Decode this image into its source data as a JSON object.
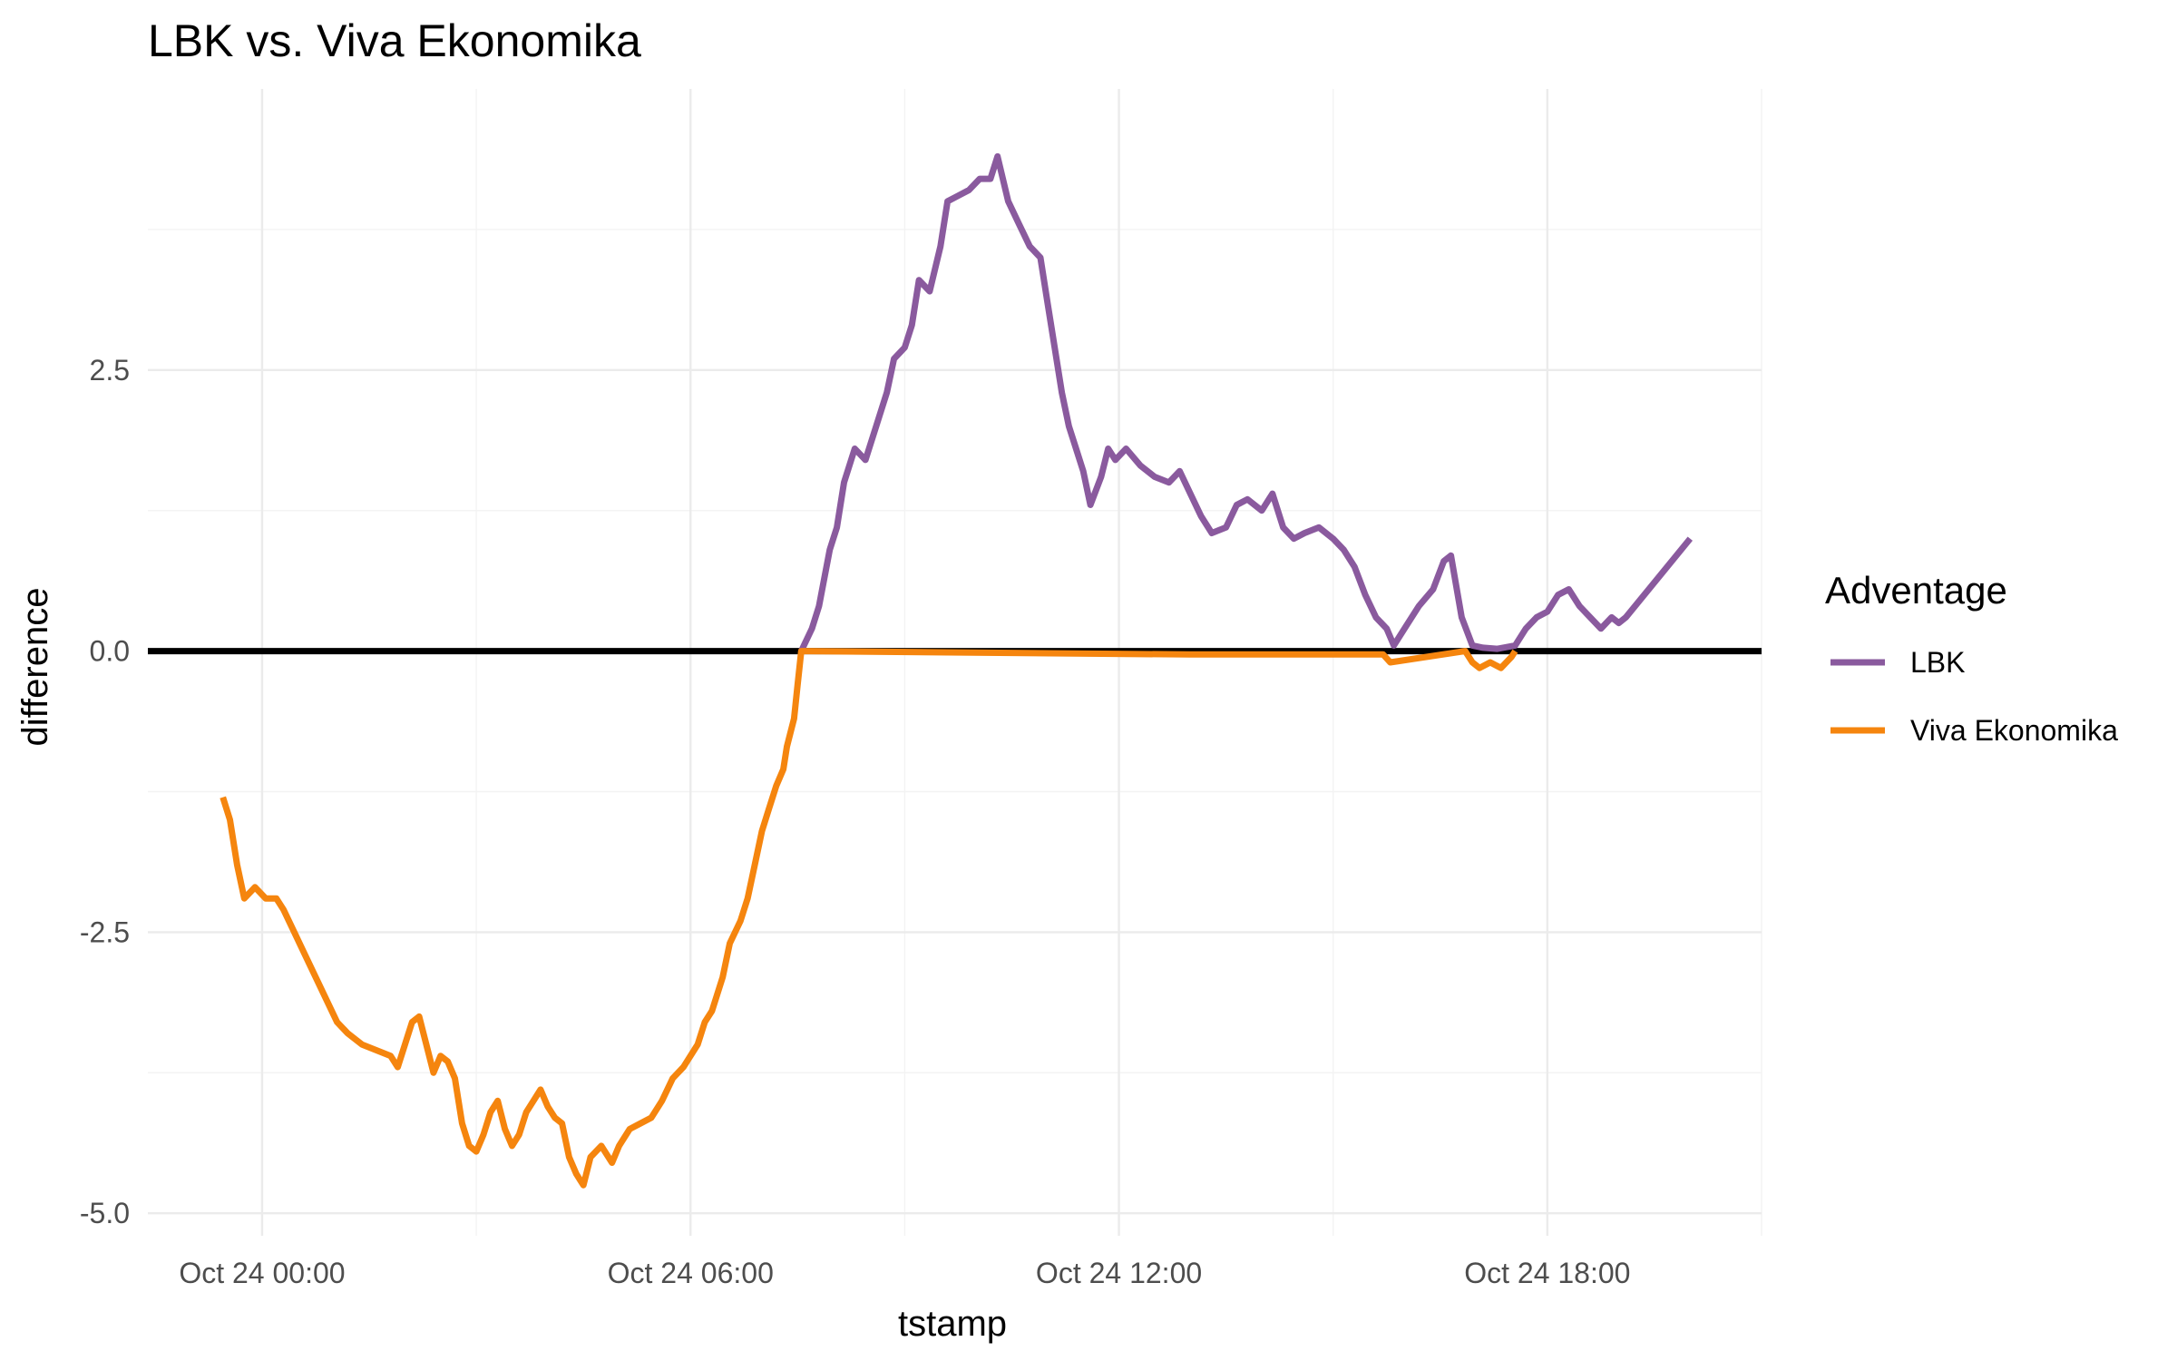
{
  "chart_data": {
    "type": "line",
    "title": "LBK vs. Viva Ekonomika",
    "xlabel": "tstamp",
    "ylabel": "difference",
    "x_ticks": [
      {
        "x": 0,
        "label": "Oct 24 00:00"
      },
      {
        "x": 6,
        "label": "Oct 24 06:00"
      },
      {
        "x": 12,
        "label": "Oct 24 12:00"
      },
      {
        "x": 18,
        "label": "Oct 24 18:00"
      }
    ],
    "y_ticks": [
      -5.0,
      -2.5,
      0.0,
      2.5
    ],
    "y_tick_labels": [
      "-5.0",
      "-2.5",
      "0.0",
      "2.5"
    ],
    "xlim": [
      -1.6,
      21.0
    ],
    "ylim": [
      -5.2,
      5.0
    ],
    "grid": true,
    "reference_line_y": 0,
    "legend": {
      "title": "Adventage",
      "position": "right",
      "entries": [
        "LBK",
        "Viva Ekonomika"
      ]
    },
    "series": [
      {
        "name": "LBK",
        "color": "#8a5a9e",
        "points": [
          [
            7.55,
            0.0
          ],
          [
            7.7,
            0.2
          ],
          [
            7.8,
            0.4
          ],
          [
            7.95,
            0.9
          ],
          [
            8.05,
            1.1
          ],
          [
            8.15,
            1.5
          ],
          [
            8.3,
            1.8
          ],
          [
            8.45,
            1.7
          ],
          [
            8.6,
            2.0
          ],
          [
            8.75,
            2.3
          ],
          [
            8.85,
            2.6
          ],
          [
            9.0,
            2.7
          ],
          [
            9.1,
            2.9
          ],
          [
            9.2,
            3.3
          ],
          [
            9.35,
            3.2
          ],
          [
            9.5,
            3.6
          ],
          [
            9.6,
            4.0
          ],
          [
            9.75,
            4.05
          ],
          [
            9.9,
            4.1
          ],
          [
            10.05,
            4.2
          ],
          [
            10.2,
            4.2
          ],
          [
            10.3,
            4.4
          ],
          [
            10.45,
            4.0
          ],
          [
            10.6,
            3.8
          ],
          [
            10.75,
            3.6
          ],
          [
            10.9,
            3.5
          ],
          [
            11.0,
            3.1
          ],
          [
            11.1,
            2.7
          ],
          [
            11.2,
            2.3
          ],
          [
            11.3,
            2.0
          ],
          [
            11.4,
            1.8
          ],
          [
            11.5,
            1.6
          ],
          [
            11.6,
            1.3
          ],
          [
            11.75,
            1.55
          ],
          [
            11.85,
            1.8
          ],
          [
            11.95,
            1.7
          ],
          [
            12.1,
            1.8
          ],
          [
            12.3,
            1.65
          ],
          [
            12.5,
            1.55
          ],
          [
            12.7,
            1.5
          ],
          [
            12.85,
            1.6
          ],
          [
            13.0,
            1.4
          ],
          [
            13.15,
            1.2
          ],
          [
            13.3,
            1.05
          ],
          [
            13.5,
            1.1
          ],
          [
            13.65,
            1.3
          ],
          [
            13.8,
            1.35
          ],
          [
            14.0,
            1.25
          ],
          [
            14.15,
            1.4
          ],
          [
            14.3,
            1.1
          ],
          [
            14.45,
            1.0
          ],
          [
            14.6,
            1.05
          ],
          [
            14.8,
            1.1
          ],
          [
            15.0,
            1.0
          ],
          [
            15.15,
            0.9
          ],
          [
            15.3,
            0.75
          ],
          [
            15.45,
            0.5
          ],
          [
            15.6,
            0.3
          ],
          [
            15.75,
            0.2
          ],
          [
            15.85,
            0.05
          ],
          [
            16.0,
            0.2
          ],
          [
            16.2,
            0.4
          ],
          [
            16.4,
            0.55
          ],
          [
            16.55,
            0.8
          ],
          [
            16.65,
            0.85
          ],
          [
            16.8,
            0.3
          ],
          [
            16.95,
            0.05
          ],
          [
            17.1,
            0.03
          ],
          [
            17.3,
            0.02
          ],
          [
            17.55,
            0.05
          ],
          [
            17.7,
            0.2
          ],
          [
            17.85,
            0.3
          ],
          [
            18.0,
            0.35
          ],
          [
            18.15,
            0.5
          ],
          [
            18.3,
            0.55
          ],
          [
            18.45,
            0.4
          ],
          [
            18.6,
            0.3
          ],
          [
            18.75,
            0.2
          ],
          [
            18.9,
            0.3
          ],
          [
            19.0,
            0.25
          ],
          [
            19.1,
            0.3
          ],
          [
            20.0,
            1.0
          ]
        ]
      },
      {
        "name": "Viva Ekonomika",
        "color": "#f5850e",
        "points": [
          [
            -0.55,
            -1.3
          ],
          [
            -0.45,
            -1.5
          ],
          [
            -0.35,
            -1.9
          ],
          [
            -0.25,
            -2.2
          ],
          [
            -0.1,
            -2.1
          ],
          [
            0.05,
            -2.2
          ],
          [
            0.2,
            -2.2
          ],
          [
            0.3,
            -2.3
          ],
          [
            0.45,
            -2.5
          ],
          [
            0.6,
            -2.7
          ],
          [
            0.75,
            -2.9
          ],
          [
            0.9,
            -3.1
          ],
          [
            1.05,
            -3.3
          ],
          [
            1.2,
            -3.4
          ],
          [
            1.4,
            -3.5
          ],
          [
            1.6,
            -3.55
          ],
          [
            1.8,
            -3.6
          ],
          [
            1.9,
            -3.7
          ],
          [
            2.0,
            -3.5
          ],
          [
            2.1,
            -3.3
          ],
          [
            2.2,
            -3.25
          ],
          [
            2.3,
            -3.5
          ],
          [
            2.4,
            -3.75
          ],
          [
            2.5,
            -3.6
          ],
          [
            2.6,
            -3.65
          ],
          [
            2.7,
            -3.8
          ],
          [
            2.8,
            -4.2
          ],
          [
            2.9,
            -4.4
          ],
          [
            3.0,
            -4.45
          ],
          [
            3.1,
            -4.3
          ],
          [
            3.2,
            -4.1
          ],
          [
            3.3,
            -4.0
          ],
          [
            3.4,
            -4.25
          ],
          [
            3.5,
            -4.4
          ],
          [
            3.6,
            -4.3
          ],
          [
            3.7,
            -4.1
          ],
          [
            3.8,
            -4.0
          ],
          [
            3.9,
            -3.9
          ],
          [
            4.0,
            -4.05
          ],
          [
            4.1,
            -4.15
          ],
          [
            4.2,
            -4.2
          ],
          [
            4.3,
            -4.5
          ],
          [
            4.4,
            -4.65
          ],
          [
            4.5,
            -4.75
          ],
          [
            4.6,
            -4.5
          ],
          [
            4.75,
            -4.4
          ],
          [
            4.9,
            -4.55
          ],
          [
            5.0,
            -4.4
          ],
          [
            5.15,
            -4.25
          ],
          [
            5.3,
            -4.2
          ],
          [
            5.45,
            -4.15
          ],
          [
            5.6,
            -4.0
          ],
          [
            5.75,
            -3.8
          ],
          [
            5.9,
            -3.7
          ],
          [
            6.0,
            -3.6
          ],
          [
            6.1,
            -3.5
          ],
          [
            6.2,
            -3.3
          ],
          [
            6.3,
            -3.2
          ],
          [
            6.45,
            -2.9
          ],
          [
            6.55,
            -2.6
          ],
          [
            6.7,
            -2.4
          ],
          [
            6.8,
            -2.2
          ],
          [
            6.9,
            -1.9
          ],
          [
            7.0,
            -1.6
          ],
          [
            7.1,
            -1.4
          ],
          [
            7.2,
            -1.2
          ],
          [
            7.3,
            -1.05
          ],
          [
            7.35,
            -0.85
          ],
          [
            7.45,
            -0.6
          ],
          [
            7.5,
            -0.3
          ],
          [
            7.55,
            0.0
          ],
          [
            13.0,
            -0.03
          ],
          [
            15.7,
            -0.03
          ],
          [
            15.8,
            -0.1
          ],
          [
            16.85,
            0.0
          ],
          [
            16.95,
            -0.1
          ],
          [
            17.05,
            -0.15
          ],
          [
            17.2,
            -0.1
          ],
          [
            17.35,
            -0.15
          ],
          [
            17.5,
            -0.05
          ],
          [
            17.55,
            0.0
          ]
        ]
      }
    ]
  }
}
